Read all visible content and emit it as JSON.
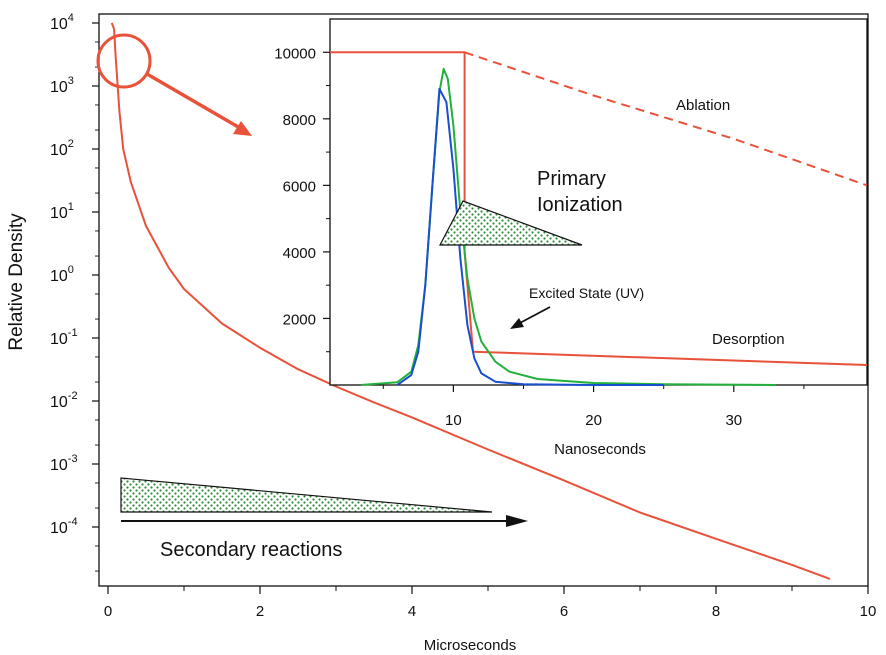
{
  "chart_data": [
    {
      "type": "line",
      "title": "",
      "xlabel": "Microseconds",
      "ylabel": "Relative Density",
      "xlim": [
        0,
        10
      ],
      "ylim": [
        -5,
        4
      ],
      "yscale": "log",
      "x_ticks": [
        "0",
        "2",
        "4",
        "6",
        "8",
        "10"
      ],
      "y_ticks": [
        {
          "base": "10",
          "exp": "4"
        },
        {
          "base": "10",
          "exp": "3"
        },
        {
          "base": "10",
          "exp": "2"
        },
        {
          "base": "10",
          "exp": "1"
        },
        {
          "base": "10",
          "exp": "0"
        },
        {
          "base": "10",
          "exp": "-1"
        },
        {
          "base": "10",
          "exp": "-2"
        },
        {
          "base": "10",
          "exp": "-3"
        },
        {
          "base": "10",
          "exp": "-4"
        }
      ],
      "series": [
        {
          "color": "#e8523a",
          "x": [
            0.05,
            0.08,
            0.1,
            0.15,
            0.2,
            0.3,
            0.5,
            0.8,
            1.0,
            1.5,
            2.0,
            2.5,
            3.0,
            3.5,
            4.0,
            5.0,
            6.0,
            7.0,
            8.0,
            9.0,
            9.5
          ],
          "y": [
            10000,
            8000,
            3000,
            400,
            100,
            30,
            6,
            1.3,
            0.6,
            0.17,
            0.07,
            0.032,
            0.017,
            0.0095,
            0.0055,
            0.0017,
            0.00055,
            0.00017,
            6.5e-05,
            2.5e-05,
            1.5e-05
          ]
        }
      ],
      "annotations": {
        "secondary": "Secondary reactions"
      }
    },
    {
      "type": "line",
      "title": "",
      "xlabel": "Nanoseconds",
      "ylabel": "",
      "xlim": [
        1.2,
        39.5
      ],
      "ylim": [
        0,
        11000
      ],
      "x_ticks": [
        "10",
        "20",
        "30"
      ],
      "y_ticks": [
        "2000",
        "4000",
        "6000",
        "8000",
        "10000"
      ],
      "series": [
        {
          "color": "#e8523a",
          "x": [
            1.2,
            10.8,
            10.8,
            11.4,
            39.5
          ],
          "y": [
            10000,
            10000,
            4000,
            1000,
            600
          ]
        },
        {
          "color": "#e8523a",
          "dashed": true,
          "x": [
            10.8,
            20,
            30,
            39.5
          ],
          "y": [
            10000,
            8700,
            7400,
            6000
          ]
        },
        {
          "color": "#22b03a",
          "x": [
            3.4,
            6,
            7,
            7.5,
            8,
            8.5,
            9,
            9.3,
            9.6,
            10,
            10.5,
            11,
            11.5,
            12,
            13,
            14,
            16,
            20,
            25,
            33
          ],
          "y": [
            0,
            80,
            400,
            1200,
            3000,
            6000,
            8800,
            9500,
            9200,
            7800,
            5200,
            3200,
            2000,
            1300,
            700,
            400,
            180,
            60,
            20,
            0
          ]
        },
        {
          "color": "#1a4fd0",
          "x": [
            6,
            7,
            7.5,
            8,
            8.5,
            9,
            9.5,
            10,
            10.5,
            11,
            11.5,
            12,
            13,
            15,
            20,
            25
          ],
          "y": [
            0,
            300,
            1000,
            3000,
            6000,
            8900,
            8500,
            6500,
            3800,
            1800,
            800,
            350,
            100,
            20,
            0,
            0
          ]
        }
      ],
      "annotations": {
        "ablation": "Ablation",
        "primary_line1": "Primary",
        "primary_line2": "Ionization",
        "excited": "Excited State (UV)",
        "desorption": "Desorption"
      }
    }
  ]
}
